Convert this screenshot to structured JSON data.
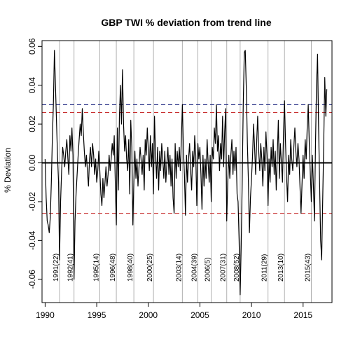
{
  "chart_data": {
    "type": "line",
    "title": "GBP TWI  % deviation from trend line",
    "xlabel": "",
    "ylabel": "% Deviation",
    "xlim": [
      1989.7,
      2017.8
    ],
    "ylim": [
      -0.072,
      0.063
    ],
    "x_ticks": [
      1990,
      1995,
      2000,
      2005,
      2010,
      2015
    ],
    "y_ticks": [
      -0.06,
      -0.04,
      -0.02,
      0.0,
      0.02,
      0.04,
      0.06
    ],
    "x_tick_labels": [
      "1990",
      "1995",
      "2000",
      "2005",
      "2010",
      "2015"
    ],
    "y_tick_labels": [
      "-0.06",
      "-0.04",
      "-0.02",
      "0.00",
      "0.02",
      "0.04",
      "0.06"
    ],
    "zero_line": 0.0,
    "reference_lines": [
      {
        "value": 0.03,
        "color": "#1a237e",
        "style": "dashed"
      },
      {
        "value": 0.026,
        "color": "#c62828",
        "style": "dashed"
      },
      {
        "value": -0.026,
        "color": "#c62828",
        "style": "dashed"
      }
    ],
    "event_lines": [
      {
        "x": 1991.4,
        "label": "1991(22)"
      },
      {
        "x": 1992.8,
        "label": "1992(41)"
      },
      {
        "x": 1995.3,
        "label": "1995(14)"
      },
      {
        "x": 1996.9,
        "label": "1996(48)"
      },
      {
        "x": 1998.6,
        "label": "1998(40)"
      },
      {
        "x": 2000.5,
        "label": "2000(25)"
      },
      {
        "x": 2003.3,
        "label": "2003(14)"
      },
      {
        "x": 2004.8,
        "label": "2004(39)"
      },
      {
        "x": 2006.1,
        "label": "2006(5)"
      },
      {
        "x": 2007.6,
        "label": "2007(31)"
      },
      {
        "x": 2008.9,
        "label": "2008(52)"
      },
      {
        "x": 2011.6,
        "label": "2011(29)"
      },
      {
        "x": 2013.2,
        "label": "2013(10)"
      },
      {
        "x": 2015.8,
        "label": "2015(43)"
      }
    ],
    "series": [
      {
        "color": "#000000",
        "points": [
          [
            1990.0,
            0.002
          ],
          [
            1990.1,
            -0.018
          ],
          [
            1990.2,
            -0.03
          ],
          [
            1990.3,
            -0.032
          ],
          [
            1990.4,
            -0.036
          ],
          [
            1990.5,
            -0.028
          ],
          [
            1990.6,
            -0.01
          ],
          [
            1990.7,
            0.012
          ],
          [
            1990.8,
            0.03
          ],
          [
            1990.9,
            0.058
          ],
          [
            1991.0,
            0.04
          ],
          [
            1991.1,
            0.022
          ],
          [
            1991.2,
            0.004
          ],
          [
            1991.3,
            -0.01
          ],
          [
            1991.4,
            -0.05
          ],
          [
            1991.5,
            -0.02
          ],
          [
            1991.6,
            -0.004
          ],
          [
            1991.7,
            0.008
          ],
          [
            1991.8,
            0.004
          ],
          [
            1991.9,
            -0.002
          ],
          [
            1992.0,
            0.006
          ],
          [
            1992.1,
            0.012
          ],
          [
            1992.2,
            0.003
          ],
          [
            1992.3,
            -0.006
          ],
          [
            1992.4,
            0.014
          ],
          [
            1992.5,
            0.006
          ],
          [
            1992.6,
            0.018
          ],
          [
            1992.7,
            0.004
          ],
          [
            1992.8,
            -0.06
          ],
          [
            1992.9,
            -0.03
          ],
          [
            1993.0,
            -0.016
          ],
          [
            1993.1,
            -0.006
          ],
          [
            1993.2,
            0.004
          ],
          [
            1993.3,
            0.012
          ],
          [
            1993.4,
            0.02
          ],
          [
            1993.5,
            0.014
          ],
          [
            1993.6,
            0.028
          ],
          [
            1993.7,
            0.016
          ],
          [
            1993.8,
            0.006
          ],
          [
            1993.9,
            -0.002
          ],
          [
            1994.0,
            0.004
          ],
          [
            1994.1,
            -0.004
          ],
          [
            1994.2,
            -0.012
          ],
          [
            1994.3,
            0.002
          ],
          [
            1994.4,
            0.008
          ],
          [
            1994.5,
            -0.002
          ],
          [
            1994.6,
            0.01
          ],
          [
            1994.7,
            0.004
          ],
          [
            1994.8,
            -0.006
          ],
          [
            1994.9,
            0.002
          ],
          [
            1995.0,
            -0.01
          ],
          [
            1995.1,
            -0.004
          ],
          [
            1995.2,
            0.006
          ],
          [
            1995.3,
            -0.004
          ],
          [
            1995.4,
            -0.016
          ],
          [
            1995.5,
            -0.022
          ],
          [
            1995.6,
            -0.008
          ],
          [
            1995.7,
            -0.018
          ],
          [
            1995.8,
            -0.01
          ],
          [
            1995.9,
            -0.002
          ],
          [
            1996.0,
            -0.012
          ],
          [
            1996.1,
            -0.006
          ],
          [
            1996.2,
            0.004
          ],
          [
            1996.3,
            -0.004
          ],
          [
            1996.4,
            0.002
          ],
          [
            1996.5,
            0.01
          ],
          [
            1996.6,
            0.004
          ],
          [
            1996.7,
            0.014
          ],
          [
            1996.8,
            -0.01
          ],
          [
            1996.9,
            -0.032
          ],
          [
            1997.0,
            0.018
          ],
          [
            1997.1,
            -0.014
          ],
          [
            1997.2,
            0.024
          ],
          [
            1997.3,
            0.04
          ],
          [
            1997.4,
            0.02
          ],
          [
            1997.5,
            0.048
          ],
          [
            1997.6,
            0.02
          ],
          [
            1997.7,
            0.006
          ],
          [
            1997.8,
            0.014
          ],
          [
            1997.9,
            0.002
          ],
          [
            1998.0,
            -0.004
          ],
          [
            1998.1,
            0.012
          ],
          [
            1998.2,
            -0.016
          ],
          [
            1998.3,
            0.022
          ],
          [
            1998.4,
            0.008
          ],
          [
            1998.5,
            -0.032
          ],
          [
            1998.6,
            -0.01
          ],
          [
            1998.7,
            0.006
          ],
          [
            1998.8,
            -0.008
          ],
          [
            1998.9,
            0.002
          ],
          [
            1999.0,
            -0.012
          ],
          [
            1999.1,
            -0.002
          ],
          [
            1999.2,
            0.008
          ],
          [
            1999.3,
            0.002
          ],
          [
            1999.4,
            -0.006
          ],
          [
            1999.5,
            0.004
          ],
          [
            1999.6,
            -0.014
          ],
          [
            1999.7,
            0.012
          ],
          [
            1999.8,
            0.004
          ],
          [
            1999.9,
            0.018
          ],
          [
            2000.0,
            0.006
          ],
          [
            2000.1,
            -0.004
          ],
          [
            2000.2,
            0.014
          ],
          [
            2000.3,
            -0.002
          ],
          [
            2000.4,
            0.01
          ],
          [
            2000.5,
            -0.016
          ],
          [
            2000.6,
            0.024
          ],
          [
            2000.7,
            0.004
          ],
          [
            2000.8,
            -0.008
          ],
          [
            2000.9,
            0.008
          ],
          [
            2001.0,
            -0.014
          ],
          [
            2001.1,
            0.006
          ],
          [
            2001.2,
            -0.004
          ],
          [
            2001.3,
            0.01
          ],
          [
            2001.4,
            0.002
          ],
          [
            2001.5,
            -0.008
          ],
          [
            2001.6,
            0.006
          ],
          [
            2001.7,
            -0.01
          ],
          [
            2001.8,
            0.0
          ],
          [
            2001.9,
            0.008
          ],
          [
            2002.0,
            -0.006
          ],
          [
            2002.1,
            0.004
          ],
          [
            2002.2,
            -0.012
          ],
          [
            2002.3,
            0.002
          ],
          [
            2002.4,
            -0.018
          ],
          [
            2002.5,
            -0.026
          ],
          [
            2002.6,
            0.01
          ],
          [
            2002.7,
            -0.008
          ],
          [
            2002.8,
            0.006
          ],
          [
            2002.9,
            -0.002
          ],
          [
            2003.0,
            0.008
          ],
          [
            2003.1,
            -0.004
          ],
          [
            2003.2,
            0.012
          ],
          [
            2003.3,
            0.03
          ],
          [
            2003.4,
            0.008
          ],
          [
            2003.5,
            -0.006
          ],
          [
            2003.6,
            -0.027
          ],
          [
            2003.7,
            0.004
          ],
          [
            2003.8,
            -0.01
          ],
          [
            2003.9,
            0.002
          ],
          [
            2004.0,
            0.01
          ],
          [
            2004.1,
            -0.004
          ],
          [
            2004.2,
            -0.014
          ],
          [
            2004.3,
            0.006
          ],
          [
            2004.4,
            -0.002
          ],
          [
            2004.5,
            0.014
          ],
          [
            2004.6,
            0.004
          ],
          [
            2004.7,
            -0.022
          ],
          [
            2004.8,
            0.01
          ],
          [
            2004.9,
            0.002
          ],
          [
            2005.0,
            0.008
          ],
          [
            2005.1,
            -0.006
          ],
          [
            2005.2,
            -0.024
          ],
          [
            2005.3,
            0.004
          ],
          [
            2005.4,
            -0.012
          ],
          [
            2005.5,
            0.002
          ],
          [
            2005.6,
            -0.008
          ],
          [
            2005.7,
            0.012
          ],
          [
            2005.8,
            0.0
          ],
          [
            2005.9,
            -0.01
          ],
          [
            2006.0,
            0.004
          ],
          [
            2006.1,
            -0.02
          ],
          [
            2006.2,
            0.008
          ],
          [
            2006.3,
            0.002
          ],
          [
            2006.4,
            0.018
          ],
          [
            2006.5,
            0.01
          ],
          [
            2006.6,
            0.03
          ],
          [
            2006.7,
            0.006
          ],
          [
            2006.8,
            0.014
          ],
          [
            2006.9,
            -0.004
          ],
          [
            2007.0,
            0.01
          ],
          [
            2007.1,
            0.002
          ],
          [
            2007.2,
            0.024
          ],
          [
            2007.3,
            -0.002
          ],
          [
            2007.4,
            0.016
          ],
          [
            2007.5,
            0.028
          ],
          [
            2007.6,
            -0.03
          ],
          [
            2007.7,
            -0.01
          ],
          [
            2007.8,
            0.004
          ],
          [
            2007.9,
            -0.008
          ],
          [
            2008.0,
            0.004
          ],
          [
            2008.1,
            0.012
          ],
          [
            2008.2,
            -0.006
          ],
          [
            2008.3,
            0.006
          ],
          [
            2008.4,
            -0.004
          ],
          [
            2008.5,
            0.008
          ],
          [
            2008.6,
            -0.016
          ],
          [
            2008.7,
            -0.02
          ],
          [
            2008.8,
            -0.04
          ],
          [
            2008.9,
            -0.068
          ],
          [
            2009.0,
            -0.044
          ],
          [
            2009.1,
            -0.01
          ],
          [
            2009.2,
            0.03
          ],
          [
            2009.3,
            0.057
          ],
          [
            2009.4,
            0.058
          ],
          [
            2009.5,
            0.038
          ],
          [
            2009.6,
            0.01
          ],
          [
            2009.7,
            -0.01
          ],
          [
            2009.8,
            -0.036
          ],
          [
            2009.9,
            -0.018
          ],
          [
            2010.0,
            -0.008
          ],
          [
            2010.1,
            0.004
          ],
          [
            2010.2,
            0.02
          ],
          [
            2010.3,
            0.008
          ],
          [
            2010.4,
            -0.006
          ],
          [
            2010.5,
            0.01
          ],
          [
            2010.6,
            0.024
          ],
          [
            2010.7,
            0.006
          ],
          [
            2010.8,
            -0.004
          ],
          [
            2010.9,
            0.01
          ],
          [
            2011.0,
            0.002
          ],
          [
            2011.1,
            -0.012
          ],
          [
            2011.2,
            0.008
          ],
          [
            2011.3,
            -0.004
          ],
          [
            2011.4,
            0.016
          ],
          [
            2011.5,
            0.004
          ],
          [
            2011.6,
            -0.022
          ],
          [
            2011.7,
            0.002
          ],
          [
            2011.8,
            -0.01
          ],
          [
            2011.9,
            0.008
          ],
          [
            2012.0,
            -0.002
          ],
          [
            2012.1,
            0.012
          ],
          [
            2012.2,
            -0.006
          ],
          [
            2012.3,
            0.006
          ],
          [
            2012.4,
            -0.014
          ],
          [
            2012.5,
            0.004
          ],
          [
            2012.6,
            0.022
          ],
          [
            2012.7,
            -0.008
          ],
          [
            2012.8,
            0.01
          ],
          [
            2012.9,
            0.0
          ],
          [
            2013.0,
            -0.01
          ],
          [
            2013.1,
            0.016
          ],
          [
            2013.2,
            0.032
          ],
          [
            2013.3,
            0.01
          ],
          [
            2013.4,
            -0.008
          ],
          [
            2013.5,
            -0.02
          ],
          [
            2013.6,
            0.004
          ],
          [
            2013.7,
            -0.006
          ],
          [
            2013.8,
            0.012
          ],
          [
            2013.9,
            0.002
          ],
          [
            2014.0,
            -0.004
          ],
          [
            2014.1,
            0.008
          ],
          [
            2014.2,
            0.018
          ],
          [
            2014.3,
            0.006
          ],
          [
            2014.4,
            -0.002
          ],
          [
            2014.5,
            0.01
          ],
          [
            2014.6,
            0.002
          ],
          [
            2014.7,
            -0.012
          ],
          [
            2014.8,
            -0.026
          ],
          [
            2014.9,
            -0.01
          ],
          [
            2015.0,
            0.004
          ],
          [
            2015.1,
            -0.008
          ],
          [
            2015.2,
            0.012
          ],
          [
            2015.3,
            0.002
          ],
          [
            2015.4,
            0.018
          ],
          [
            2015.5,
            0.03
          ],
          [
            2015.6,
            0.01
          ],
          [
            2015.7,
            -0.006
          ],
          [
            2015.8,
            -0.02
          ],
          [
            2015.9,
            0.004
          ],
          [
            2016.0,
            -0.012
          ],
          [
            2016.1,
            -0.03
          ],
          [
            2016.2,
            0.008
          ],
          [
            2016.3,
            0.04
          ],
          [
            2016.4,
            0.056
          ],
          [
            2016.5,
            0.02
          ],
          [
            2016.6,
            -0.01
          ],
          [
            2016.7,
            -0.04
          ],
          [
            2016.8,
            -0.05
          ],
          [
            2016.9,
            -0.02
          ],
          [
            2017.0,
            0.01
          ],
          [
            2017.1,
            0.044
          ],
          [
            2017.2,
            0.024
          ],
          [
            2017.3,
            0.038
          ]
        ]
      }
    ]
  }
}
